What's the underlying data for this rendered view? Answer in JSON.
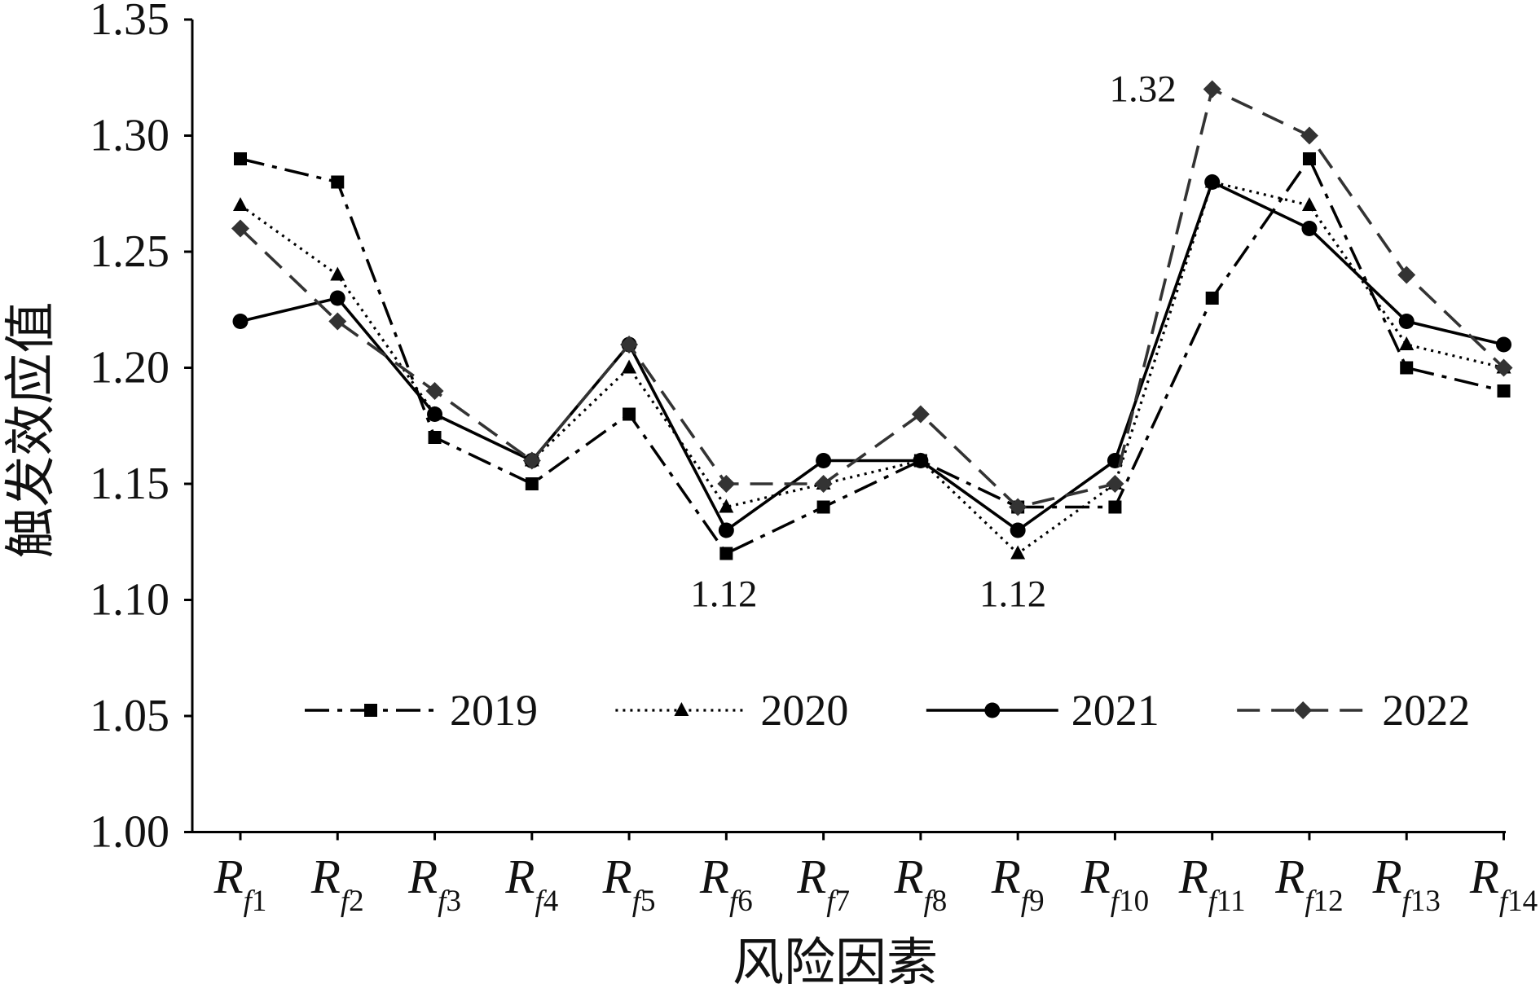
{
  "chart_data": {
    "type": "line",
    "title": "",
    "xlabel": "风险因素",
    "ylabel": "触发效应值",
    "categories": [
      "Rf1",
      "Rf2",
      "Rf3",
      "Rf4",
      "Rf5",
      "Rf6",
      "Rf7",
      "Rf8",
      "Rf9",
      "Rf10",
      "Rf11",
      "Rf12",
      "Rf13",
      "Rf14"
    ],
    "ylim": [
      1.0,
      1.35
    ],
    "yticks": [
      "1.00",
      "1.05",
      "1.10",
      "1.15",
      "1.20",
      "1.25",
      "1.30",
      "1.35"
    ],
    "grid": false,
    "legend": {
      "position": "bottom-center inside plot"
    },
    "series": [
      {
        "name": "2019",
        "line_style": "dash-dot",
        "marker": "square",
        "color": "#000000",
        "values": [
          1.29,
          1.28,
          1.17,
          1.15,
          1.18,
          1.12,
          1.14,
          1.16,
          1.14,
          1.14,
          1.23,
          1.29,
          1.2,
          1.19
        ]
      },
      {
        "name": "2020",
        "line_style": "dotted",
        "marker": "triangle",
        "color": "#000000",
        "values": [
          1.27,
          1.24,
          1.18,
          1.16,
          1.2,
          1.14,
          1.15,
          1.16,
          1.12,
          1.15,
          1.28,
          1.27,
          1.21,
          1.2
        ]
      },
      {
        "name": "2021",
        "line_style": "solid",
        "marker": "circle",
        "color": "#000000",
        "values": [
          1.22,
          1.23,
          1.18,
          1.16,
          1.21,
          1.13,
          1.16,
          1.16,
          1.13,
          1.16,
          1.28,
          1.26,
          1.22,
          1.21
        ]
      },
      {
        "name": "2022",
        "line_style": "dashed",
        "marker": "diamond",
        "color": "#333333",
        "values": [
          1.26,
          1.22,
          1.19,
          1.16,
          1.21,
          1.15,
          1.15,
          1.18,
          1.14,
          1.15,
          1.32,
          1.3,
          1.24,
          1.2
        ]
      }
    ],
    "annotations": [
      {
        "text": "1.32",
        "category": "Rf11",
        "series": "2022"
      },
      {
        "text": "1.12",
        "category": "Rf6",
        "series": "2019"
      },
      {
        "text": "1.12",
        "category": "Rf9",
        "series": "2020"
      }
    ]
  }
}
